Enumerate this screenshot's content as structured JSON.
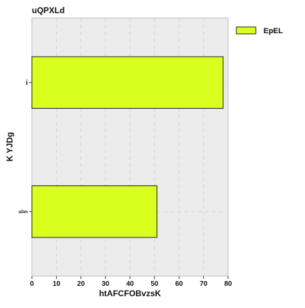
{
  "chart_data": {
    "type": "bar",
    "orientation": "horizontal",
    "title": "uQPXLd",
    "xlabel": "htAFCFOBvzsK",
    "ylabel": "K YJDg",
    "categories": [
      "i",
      "uDm"
    ],
    "series": [
      {
        "name": "EpEL",
        "values": [
          78,
          51
        ]
      }
    ],
    "xlim": [
      0,
      80
    ],
    "xticks": [
      0,
      10,
      20,
      30,
      40,
      50,
      60,
      70,
      80
    ],
    "grid": true,
    "legend_position": "top-right",
    "colors": {
      "bar_fill": "#d9ff1f",
      "bar_stroke": "#1a1a1a",
      "plot_background": "#ececec",
      "grid": "#d4d4d4",
      "text": "#111111"
    }
  }
}
